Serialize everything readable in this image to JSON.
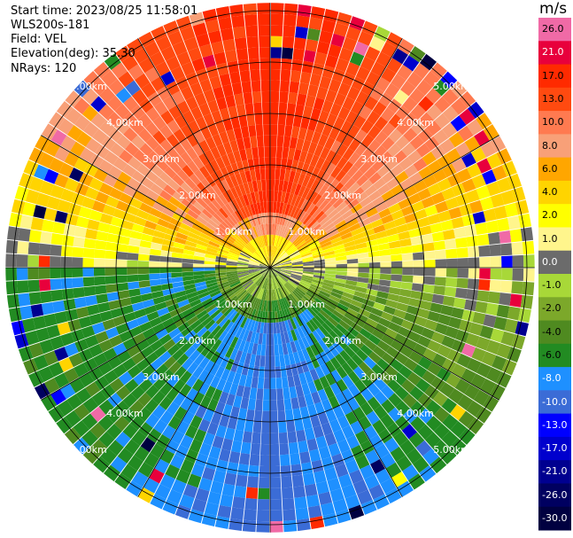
{
  "header": {
    "start_time": "Start time: 2023/08/25 11:58:01",
    "instrument": "WLS200s-181",
    "field": "Field: VEL",
    "elevation": "Elevation(deg): 35.30",
    "nrays": "NRays: 120"
  },
  "colorbar": {
    "unit": "m/s",
    "levels": [
      {
        "label": "26.0",
        "color": "#f06aa6",
        "text_color": "#000000"
      },
      {
        "label": "21.0",
        "color": "#e8003c",
        "text_color": "#ffffff"
      },
      {
        "label": "17.0",
        "color": "#ff2a00",
        "text_color": "#000000"
      },
      {
        "label": "13.0",
        "color": "#ff4a10",
        "text_color": "#000000"
      },
      {
        "label": "10.0",
        "color": "#ff7a50",
        "text_color": "#000000"
      },
      {
        "label": "8.0",
        "color": "#f8a078",
        "text_color": "#000000"
      },
      {
        "label": "6.0",
        "color": "#ffa600",
        "text_color": "#000000"
      },
      {
        "label": "4.0",
        "color": "#ffd400",
        "text_color": "#000000"
      },
      {
        "label": "2.0",
        "color": "#ffff00",
        "text_color": "#000000"
      },
      {
        "label": "1.0",
        "color": "#fff58c",
        "text_color": "#000000"
      },
      {
        "label": "0.0",
        "color": "#6b6b6b",
        "text_color": "#ffffff"
      },
      {
        "label": "-1.0",
        "color": "#a8d838",
        "text_color": "#000000"
      },
      {
        "label": "-2.0",
        "color": "#7ca82a",
        "text_color": "#000000"
      },
      {
        "label": "-4.0",
        "color": "#4f8a20",
        "text_color": "#000000"
      },
      {
        "label": "-6.0",
        "color": "#228b22",
        "text_color": "#000000"
      },
      {
        "label": "-8.0",
        "color": "#1e90ff",
        "text_color": "#ffffff"
      },
      {
        "label": "-10.0",
        "color": "#3b6cd6",
        "text_color": "#ffffff"
      },
      {
        "label": "-13.0",
        "color": "#0000ff",
        "text_color": "#ffffff"
      },
      {
        "label": "-17.0",
        "color": "#0000cd",
        "text_color": "#ffffff"
      },
      {
        "label": "-21.0",
        "color": "#000090",
        "text_color": "#ffffff"
      },
      {
        "label": "-26.0",
        "color": "#000060",
        "text_color": "#ffffff"
      },
      {
        "label": "-30.0",
        "color": "#000040",
        "text_color": "#ffffff"
      }
    ]
  },
  "chart_data": {
    "type": "heatmap",
    "projection": "polar PPI",
    "field": "VEL",
    "unit": "m/s",
    "range_rings_km": [
      1.0,
      2.0,
      3.0,
      4.0,
      5.0
    ],
    "range_ring_labels": [
      "1.00km",
      "2.00km",
      "3.00km",
      "4.00km",
      "5.00km"
    ],
    "nrays": 120,
    "dominant_velocity_by_sector": [
      {
        "sector": "north",
        "velocity_ms": 17.0
      },
      {
        "sector": "north-east",
        "velocity_ms": 10.0
      },
      {
        "sector": "east",
        "velocity_ms": 0.0
      },
      {
        "sector": "south-east",
        "velocity_ms": -6.0
      },
      {
        "sector": "south",
        "velocity_ms": -10.0
      },
      {
        "sector": "south-west",
        "velocity_ms": -6.0
      },
      {
        "sector": "west",
        "velocity_ms": 0.0
      },
      {
        "sector": "north-west",
        "velocity_ms": 10.0
      }
    ]
  }
}
